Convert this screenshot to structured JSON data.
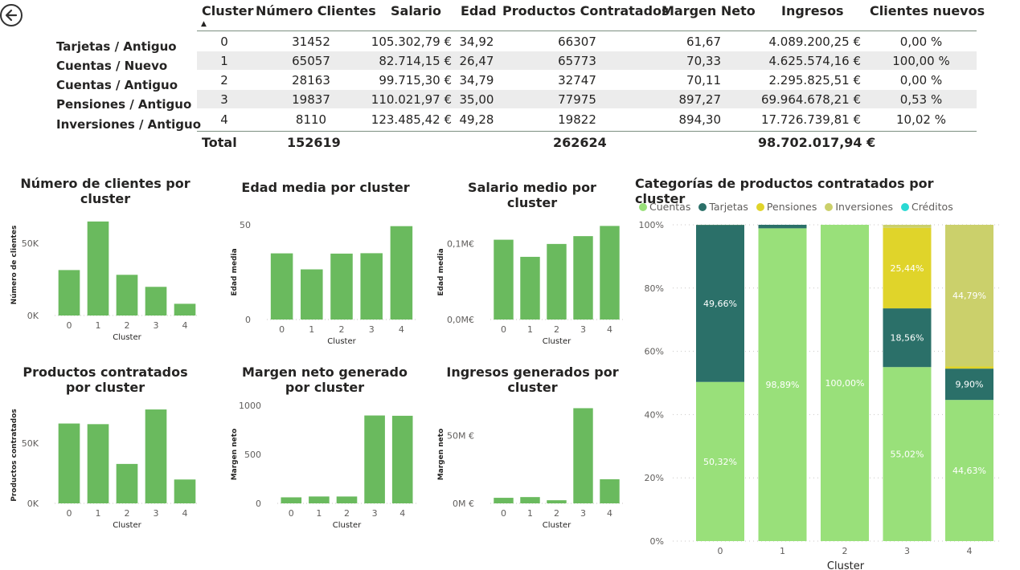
{
  "table": {
    "headers": [
      "Cluster",
      "Número Clientes",
      "Salario",
      "Edad",
      "Productos Contratados",
      "Margen Neto",
      "Ingresos",
      "Clientes nuevos"
    ],
    "sort_indicator": "▲",
    "row_labels": [
      "Tarjetas / Antiguo",
      "Cuentas / Nuevo",
      "Cuentas / Antiguo",
      "Pensiones / Antiguo",
      "Inversiones / Antiguo"
    ],
    "rows": [
      [
        "0",
        "31452",
        "105.302,79 €",
        "34,92",
        "66307",
        "61,67",
        "4.089.200,25 €",
        "0,00 %"
      ],
      [
        "1",
        "65057",
        "82.714,15 €",
        "26,47",
        "65773",
        "70,33",
        "4.625.574,16 €",
        "100,00 %"
      ],
      [
        "2",
        "28163",
        "99.715,30 €",
        "34,79",
        "32747",
        "70,11",
        "2.295.825,51 €",
        "0,00 %"
      ],
      [
        "3",
        "19837",
        "110.021,97 €",
        "35,00",
        "77975",
        "897,27",
        "69.964.678,21 €",
        "0,53 %"
      ],
      [
        "4",
        "8110",
        "123.485,42 €",
        "49,28",
        "19822",
        "894,30",
        "17.726.739,81 €",
        "10,02 %"
      ]
    ],
    "total": {
      "label": "Total",
      "clientes": "152619",
      "productos": "262624",
      "ingresos": "98.702.017,94 €"
    }
  },
  "chart_data": [
    {
      "type": "bar",
      "title": "Número de clientes por cluster",
      "xlabel": "Cluster",
      "ylabel": "Número de clientes",
      "categories": [
        "0",
        "1",
        "2",
        "3",
        "4"
      ],
      "values": [
        31452,
        65057,
        28163,
        19837,
        8110
      ],
      "ylim": [
        0,
        70000
      ],
      "yticks": [
        {
          "v": 0,
          "label": "0K"
        },
        {
          "v": 50000,
          "label": "50K"
        }
      ],
      "color": "#6aba5e"
    },
    {
      "type": "bar",
      "title": "Edad media por cluster",
      "xlabel": "Cluster",
      "ylabel": "Edad media",
      "categories": [
        "0",
        "1",
        "2",
        "3",
        "4"
      ],
      "values": [
        34.92,
        26.47,
        34.79,
        35.0,
        49.28
      ],
      "ylim": [
        0,
        50
      ],
      "yticks": [
        {
          "v": 0,
          "label": "0"
        },
        {
          "v": 50,
          "label": "50"
        }
      ],
      "color": "#6aba5e"
    },
    {
      "type": "bar",
      "title": "Salario medio por cluster",
      "xlabel": "Cluster",
      "ylabel": "Edad media",
      "categories": [
        "0",
        "1",
        "2",
        "3",
        "4"
      ],
      "values": [
        105302.79,
        82714.15,
        99715.3,
        110021.97,
        123485.42
      ],
      "ylim": [
        0,
        125000
      ],
      "yticks": [
        {
          "v": 0,
          "label": "0,0M€"
        },
        {
          "v": 100000,
          "label": "0,1M€"
        }
      ],
      "color": "#6aba5e"
    },
    {
      "type": "bar",
      "title": "Productos contratados por cluster",
      "xlabel": "Cluster",
      "ylabel": "Productos contratados",
      "categories": [
        "0",
        "1",
        "2",
        "3",
        "4"
      ],
      "values": [
        66307,
        65773,
        32747,
        77975,
        19822
      ],
      "ylim": [
        0,
        80000
      ],
      "yticks": [
        {
          "v": 0,
          "label": "0K"
        },
        {
          "v": 50000,
          "label": "50K"
        }
      ],
      "color": "#6aba5e"
    },
    {
      "type": "bar",
      "title": "Margen neto generado por cluster",
      "xlabel": "Cluster",
      "ylabel": "Margen neto",
      "categories": [
        "0",
        "1",
        "2",
        "3",
        "4"
      ],
      "values": [
        61.67,
        70.33,
        70.11,
        897.27,
        894.3
      ],
      "ylim": [
        0,
        1000
      ],
      "yticks": [
        {
          "v": 0,
          "label": "0"
        },
        {
          "v": 500,
          "label": "500"
        },
        {
          "v": 1000,
          "label": "1000"
        }
      ],
      "color": "#6aba5e"
    },
    {
      "type": "bar",
      "title": "Ingresos generados por cluster",
      "xlabel": "Cluster",
      "ylabel": "Margen neto",
      "categories": [
        "0",
        "1",
        "2",
        "3",
        "4"
      ],
      "values": [
        4089200.25,
        4625574.16,
        2295825.51,
        69964678.21,
        17726739.81
      ],
      "ylim": [
        0,
        72000000
      ],
      "yticks": [
        {
          "v": 0,
          "label": "0M €"
        },
        {
          "v": 50000000,
          "label": "50M €"
        }
      ],
      "color": "#6aba5e"
    },
    {
      "type": "bar",
      "stacked": "100%",
      "title": "Categorías de productos contratados por cluster",
      "xlabel": "Cluster",
      "categories": [
        "0",
        "1",
        "2",
        "3",
        "4"
      ],
      "ylim": [
        0,
        100
      ],
      "yticks": [
        "0%",
        "20%",
        "40%",
        "60%",
        "80%",
        "100%"
      ],
      "legend_position": "top-left",
      "series": [
        {
          "name": "Cuentas",
          "color": "#99e07a",
          "values": [
            50.32,
            98.89,
            100.0,
            55.02,
            44.63
          ]
        },
        {
          "name": "Tarjetas",
          "color": "#2b7069",
          "values": [
            49.66,
            1.11,
            0,
            18.56,
            9.9
          ]
        },
        {
          "name": "Pensiones",
          "color": "#e0d42a",
          "values": [
            0.02,
            0,
            0,
            25.44,
            0.68
          ]
        },
        {
          "name": "Inversiones",
          "color": "#cbd06b",
          "values": [
            0,
            0,
            0,
            0.98,
            44.79
          ]
        },
        {
          "name": "Créditos",
          "color": "#2ad9d3",
          "values": [
            0,
            0,
            0,
            0,
            0
          ]
        }
      ],
      "labels": [
        {
          "cat": 0,
          "series": 0,
          "text": "50,32%"
        },
        {
          "cat": 0,
          "series": 1,
          "text": "49,66%"
        },
        {
          "cat": 1,
          "series": 0,
          "text": "98,89%"
        },
        {
          "cat": 2,
          "series": 0,
          "text": "100,00%"
        },
        {
          "cat": 3,
          "series": 0,
          "text": "55,02%"
        },
        {
          "cat": 3,
          "series": 1,
          "text": "18,56%"
        },
        {
          "cat": 3,
          "series": 2,
          "text": "25,44%"
        },
        {
          "cat": 4,
          "series": 0,
          "text": "44,63%"
        },
        {
          "cat": 4,
          "series": 1,
          "text": "9,90%"
        },
        {
          "cat": 4,
          "series": 3,
          "text": "44,79%"
        }
      ]
    }
  ]
}
